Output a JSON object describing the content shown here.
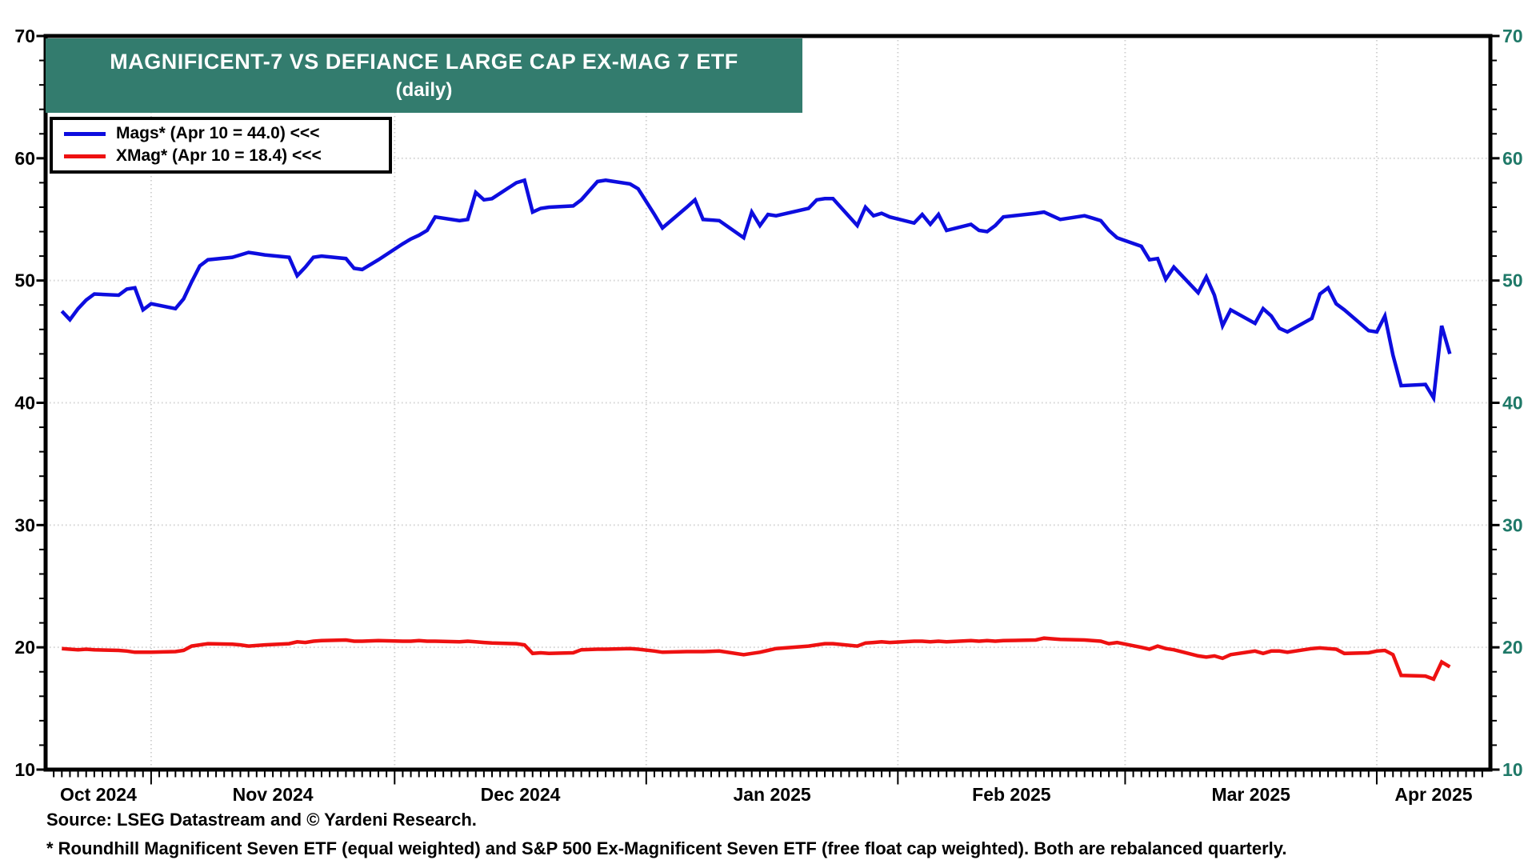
{
  "title": {
    "line1": "MAGNIFICENT-7 VS DEFIANCE LARGE CAP EX-MAG 7 ETF",
    "line2": "(daily)"
  },
  "legend": {
    "items": [
      {
        "name": "Mags",
        "label": "Mags* (Apr 10 = 44.0) <<<",
        "color": "#0d0ddf"
      },
      {
        "name": "XMag",
        "label": "XMag* (Apr 10 = 18.4) <<<",
        "color": "#ee1111"
      }
    ]
  },
  "footer": {
    "source": "Source: LSEG Datastream and © Yardeni Research.",
    "footnote": "* Roundhill Magnificent Seven ETF (equal weighted) and S&P 500 Ex-Magnificent Seven ETF (free float cap weighted). Both are rebalanced quarterly."
  },
  "colors": {
    "banner": "#337c6e",
    "right_axis_labels": "#1f7968",
    "left_axis_labels": "#000000",
    "grid": "#d2d2d2",
    "border": "#000000",
    "mags_line": "#0d0ddf",
    "xmag_line": "#ee1111"
  },
  "chart_data": {
    "type": "line",
    "title": "MAGNIFICENT-7 VS DEFIANCE LARGE CAP EX-MAG 7 ETF (daily)",
    "ylim": [
      10,
      70
    ],
    "y_major_ticks": [
      10,
      20,
      30,
      40,
      50,
      60,
      70
    ],
    "y_minor_step": 2,
    "grid": "dotted",
    "legend_position": "top-left",
    "x_domain": [
      "2024-10-19",
      "2025-04-15"
    ],
    "month_gridlines": [
      "2024-11-01",
      "2024-12-01",
      "2025-01-01",
      "2025-02-01",
      "2025-03-01",
      "2025-04-01"
    ],
    "month_labels": [
      {
        "text": "Oct 2024",
        "from": "2024-10-19",
        "to": "2024-11-01"
      },
      {
        "text": "Nov 2024",
        "from": "2024-11-01",
        "to": "2024-12-01"
      },
      {
        "text": "Dec 2024",
        "from": "2024-12-01",
        "to": "2025-01-01"
      },
      {
        "text": "Jan 2025",
        "from": "2025-01-01",
        "to": "2025-02-01"
      },
      {
        "text": "Feb 2025",
        "from": "2025-02-01",
        "to": "2025-03-01"
      },
      {
        "text": "Mar 2025",
        "from": "2025-03-01",
        "to": "2025-04-01"
      },
      {
        "text": "Apr 2025",
        "from": "2025-04-01",
        "to": "2025-04-15"
      }
    ],
    "x": [
      "2024-10-21",
      "2024-10-22",
      "2024-10-23",
      "2024-10-24",
      "2024-10-25",
      "2024-10-28",
      "2024-10-29",
      "2024-10-30",
      "2024-10-31",
      "2024-11-01",
      "2024-11-04",
      "2024-11-05",
      "2024-11-06",
      "2024-11-07",
      "2024-11-08",
      "2024-11-11",
      "2024-11-12",
      "2024-11-13",
      "2024-11-14",
      "2024-11-15",
      "2024-11-18",
      "2024-11-19",
      "2024-11-20",
      "2024-11-21",
      "2024-11-22",
      "2024-11-25",
      "2024-11-26",
      "2024-11-27",
      "2024-11-29",
      "2024-12-02",
      "2024-12-03",
      "2024-12-04",
      "2024-12-05",
      "2024-12-06",
      "2024-12-09",
      "2024-12-10",
      "2024-12-11",
      "2024-12-12",
      "2024-12-13",
      "2024-12-16",
      "2024-12-17",
      "2024-12-18",
      "2024-12-19",
      "2024-12-20",
      "2024-12-23",
      "2024-12-24",
      "2024-12-26",
      "2024-12-27",
      "2024-12-30",
      "2024-12-31",
      "2025-01-02",
      "2025-01-03",
      "2025-01-06",
      "2025-01-07",
      "2025-01-08",
      "2025-01-10",
      "2025-01-13",
      "2025-01-14",
      "2025-01-15",
      "2025-01-16",
      "2025-01-17",
      "2025-01-21",
      "2025-01-22",
      "2025-01-23",
      "2025-01-24",
      "2025-01-27",
      "2025-01-28",
      "2025-01-29",
      "2025-01-30",
      "2025-01-31",
      "2025-02-03",
      "2025-02-04",
      "2025-02-05",
      "2025-02-06",
      "2025-02-07",
      "2025-02-10",
      "2025-02-11",
      "2025-02-12",
      "2025-02-13",
      "2025-02-14",
      "2025-02-18",
      "2025-02-19",
      "2025-02-20",
      "2025-02-21",
      "2025-02-24",
      "2025-02-25",
      "2025-02-26",
      "2025-02-27",
      "2025-02-28",
      "2025-03-03",
      "2025-03-04",
      "2025-03-05",
      "2025-03-06",
      "2025-03-07",
      "2025-03-10",
      "2025-03-11",
      "2025-03-12",
      "2025-03-13",
      "2025-03-14",
      "2025-03-17",
      "2025-03-18",
      "2025-03-19",
      "2025-03-20",
      "2025-03-21",
      "2025-03-24",
      "2025-03-25",
      "2025-03-26",
      "2025-03-27",
      "2025-03-28",
      "2025-03-31",
      "2025-04-01",
      "2025-04-02",
      "2025-04-03",
      "2025-04-04",
      "2025-04-07",
      "2025-04-08",
      "2025-04-09",
      "2025-04-10"
    ],
    "series": [
      {
        "name": "Mags*",
        "color": "#0d0ddf",
        "last_label": "Apr 10 = 44.0",
        "values": [
          47.5,
          46.8,
          47.7,
          48.4,
          48.9,
          48.8,
          49.3,
          49.4,
          47.6,
          48.1,
          47.7,
          48.5,
          49.9,
          51.2,
          51.7,
          51.9,
          52.1,
          52.3,
          52.2,
          52.1,
          51.9,
          50.4,
          51.1,
          51.9,
          52.0,
          51.8,
          51.0,
          50.9,
          51.7,
          53.0,
          53.4,
          53.7,
          54.1,
          55.2,
          54.9,
          55.0,
          57.2,
          56.6,
          56.7,
          58.0,
          58.2,
          55.6,
          55.9,
          56.0,
          56.1,
          56.6,
          58.1,
          58.2,
          57.9,
          57.5,
          55.4,
          54.3,
          56.0,
          56.6,
          55.0,
          54.9,
          53.5,
          55.6,
          54.5,
          55.4,
          55.3,
          55.9,
          56.6,
          56.7,
          56.7,
          54.5,
          56.0,
          55.3,
          55.5,
          55.2,
          54.7,
          55.4,
          54.6,
          55.4,
          54.1,
          54.6,
          54.1,
          54.0,
          54.5,
          55.2,
          55.5,
          55.6,
          55.3,
          55.0,
          55.3,
          55.1,
          54.9,
          54.1,
          53.5,
          52.8,
          51.7,
          51.8,
          50.1,
          51.1,
          49.0,
          50.3,
          48.8,
          46.3,
          47.6,
          46.5,
          47.7,
          47.1,
          46.1,
          45.8,
          46.9,
          48.9,
          49.4,
          48.1,
          47.6,
          45.9,
          45.8,
          47.1,
          43.9,
          41.4,
          41.5,
          40.4,
          46.3,
          44.0
        ]
      },
      {
        "name": "XMag*",
        "color": "#ee1111",
        "last_label": "Apr 10 = 18.4",
        "values": [
          19.9,
          19.85,
          19.8,
          19.85,
          19.8,
          19.75,
          19.7,
          19.6,
          19.6,
          19.6,
          19.65,
          19.75,
          20.1,
          20.2,
          20.3,
          20.25,
          20.2,
          20.1,
          20.15,
          20.2,
          20.3,
          20.45,
          20.4,
          20.5,
          20.55,
          20.6,
          20.5,
          20.5,
          20.55,
          20.5,
          20.5,
          20.55,
          20.5,
          20.5,
          20.45,
          20.5,
          20.45,
          20.4,
          20.35,
          20.3,
          20.2,
          19.5,
          19.55,
          19.5,
          19.55,
          19.8,
          19.85,
          19.85,
          19.9,
          19.85,
          19.7,
          19.6,
          19.65,
          19.65,
          19.65,
          19.7,
          19.4,
          19.5,
          19.6,
          19.75,
          19.9,
          20.1,
          20.2,
          20.3,
          20.3,
          20.1,
          20.35,
          20.4,
          20.45,
          20.4,
          20.5,
          20.5,
          20.45,
          20.5,
          20.45,
          20.55,
          20.5,
          20.55,
          20.5,
          20.55,
          20.6,
          20.75,
          20.7,
          20.65,
          20.6,
          20.55,
          20.5,
          20.3,
          20.4,
          20.0,
          19.85,
          20.1,
          19.9,
          19.8,
          19.3,
          19.2,
          19.3,
          19.1,
          19.4,
          19.7,
          19.5,
          19.7,
          19.7,
          19.6,
          19.9,
          19.95,
          19.9,
          19.85,
          19.5,
          19.55,
          19.7,
          19.75,
          19.4,
          17.7,
          17.65,
          17.4,
          18.8,
          18.4
        ]
      }
    ]
  }
}
